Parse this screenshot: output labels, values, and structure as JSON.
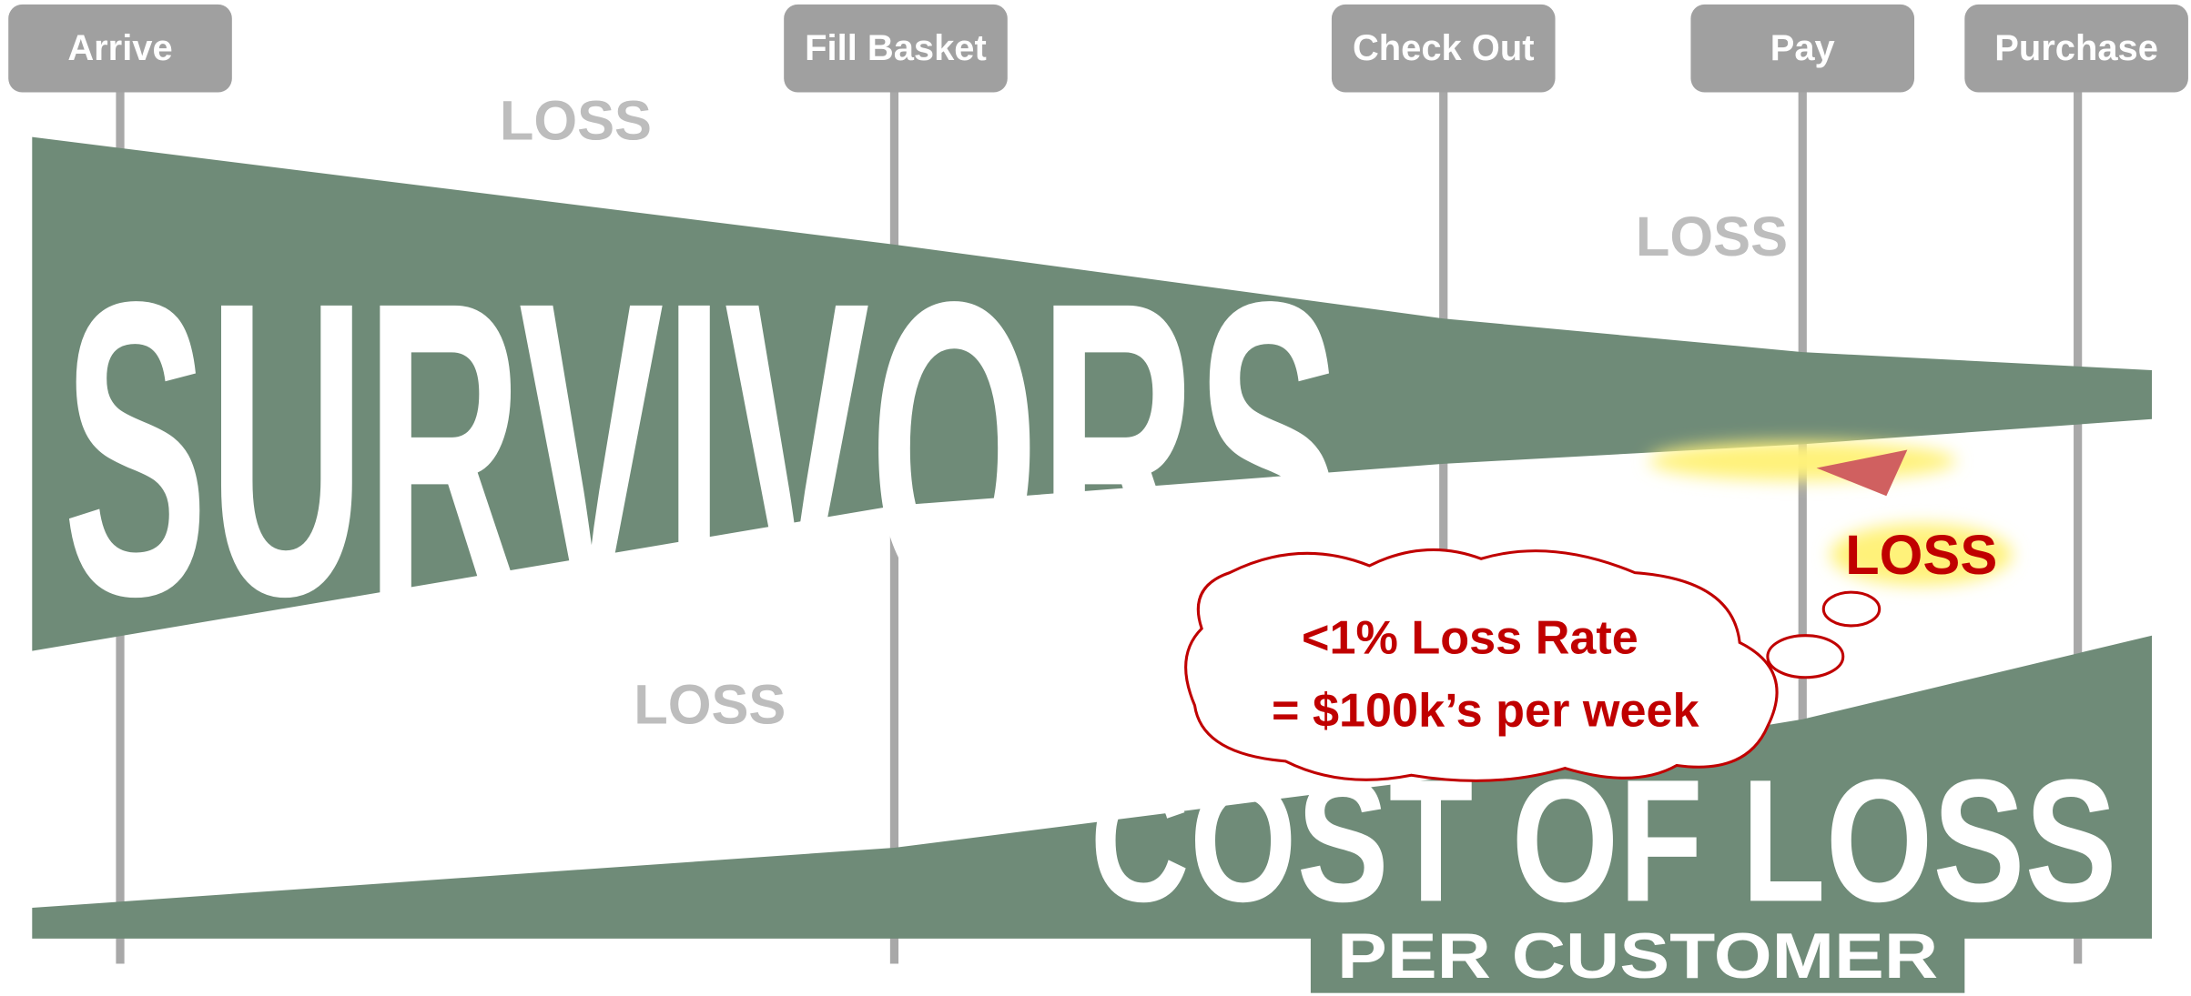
{
  "stages": [
    "Arrive",
    "Fill Basket",
    "Check Out",
    "Pay",
    "Purchase"
  ],
  "survivors": "SURVIVORS",
  "loss_labels": [
    "LOSS",
    "LOSS",
    "LOSS",
    "LOSS"
  ],
  "cost": {
    "line1": "COST OF LOSS",
    "line2": "PER CUSTOMER"
  },
  "callout": [
    "<1% Loss Rate",
    "= $100k’s per week"
  ]
}
